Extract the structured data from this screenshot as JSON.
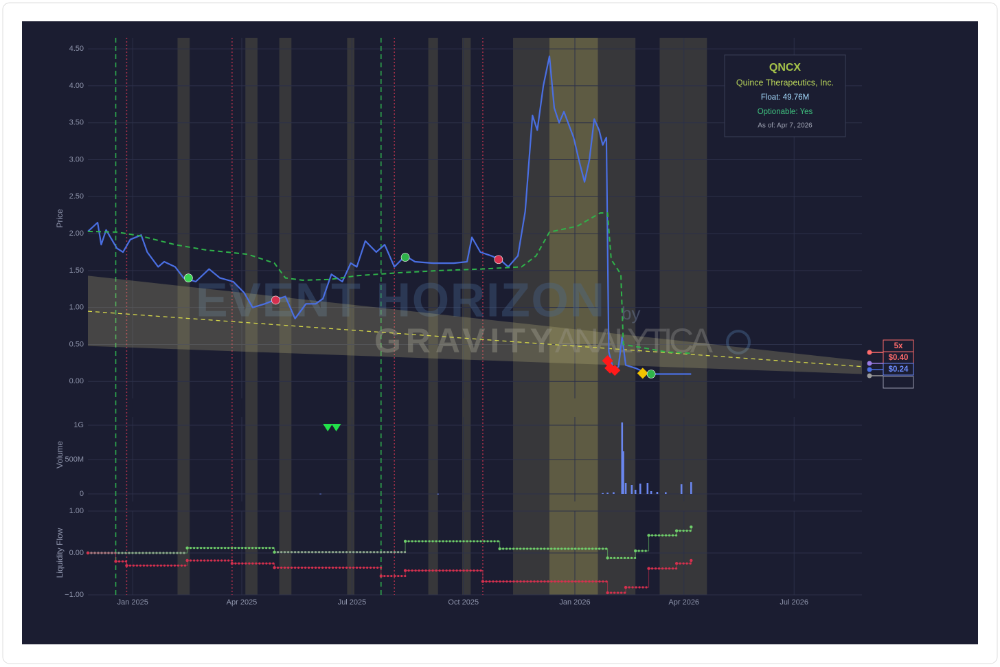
{
  "chart_data": [
    {
      "type": "line",
      "y_label": "Price",
      "ylim": [
        -0.23,
        4.65
      ],
      "yticks": [
        {
          "value": 0,
          "label": "0.00"
        },
        {
          "value": 0.5,
          "label": "0.50"
        },
        {
          "value": 1,
          "label": "1.00"
        },
        {
          "value": 1.5,
          "label": "1.50"
        },
        {
          "value": 2,
          "label": "2.00"
        },
        {
          "value": 2.5,
          "label": "2.50"
        },
        {
          "value": 3,
          "label": "3.00"
        },
        {
          "value": 3.5,
          "label": "3.50"
        },
        {
          "value": 4,
          "label": "4.00"
        },
        {
          "value": 4.5,
          "label": "4.50"
        }
      ],
      "grid": true,
      "series": [
        {
          "color": "#4a6fe3",
          "dash": "solid",
          "x": [
            "2024-11-25",
            "2024-12-03",
            "2024-12-06",
            "2024-12-10",
            "2024-12-19",
            "2024-12-24",
            "2024-12-30",
            "2025-01-08",
            "2025-01-13",
            "2025-01-22",
            "2025-01-27",
            "2025-02-05",
            "2025-02-12",
            "2025-02-22",
            "2025-03-05",
            "2025-03-14",
            "2025-03-25",
            "2025-04-03",
            "2025-04-10",
            "2025-04-20",
            "2025-04-28",
            "2025-05-07",
            "2025-05-15",
            "2025-05-24",
            "2025-06-01",
            "2025-06-07",
            "2025-06-14",
            "2025-06-23",
            "2025-06-30",
            "2025-07-05",
            "2025-07-12",
            "2025-07-21",
            "2025-07-28",
            "2025-08-05",
            "2025-08-14",
            "2025-08-22",
            "2025-09-06",
            "2025-09-23",
            "2025-10-04",
            "2025-10-08",
            "2025-10-15",
            "2025-10-24",
            "2025-10-31",
            "2025-11-07",
            "2025-11-15",
            "2025-11-21",
            "2025-11-27",
            "2025-12-01",
            "2025-12-06",
            "2025-12-11",
            "2025-12-15",
            "2025-12-19",
            "2025-12-23",
            "2025-12-31",
            "2026-01-05",
            "2026-01-09",
            "2026-01-13",
            "2026-01-17",
            "2026-01-21",
            "2026-01-24",
            "2026-01-27",
            "2026-01-29",
            "2026-02-02",
            "2026-02-06",
            "2026-02-09",
            "2026-02-12",
            "2026-02-20",
            "2026-03-03",
            "2026-03-14",
            "2026-03-26",
            "2026-04-07"
          ],
          "values": [
            2.03,
            2.15,
            1.85,
            2.05,
            1.8,
            1.75,
            1.92,
            1.98,
            1.75,
            1.55,
            1.62,
            1.55,
            1.4,
            1.35,
            1.52,
            1.4,
            1.35,
            1.2,
            1.0,
            1.05,
            1.1,
            1.15,
            0.85,
            1.05,
            1.05,
            1.12,
            1.45,
            1.35,
            1.6,
            1.55,
            1.9,
            1.75,
            1.85,
            1.55,
            1.7,
            1.62,
            1.6,
            1.6,
            1.62,
            1.95,
            1.75,
            1.7,
            1.65,
            1.55,
            1.7,
            2.3,
            3.6,
            3.4,
            4.0,
            4.4,
            3.7,
            3.5,
            3.65,
            3.3,
            2.95,
            2.7,
            3.0,
            3.55,
            3.4,
            3.2,
            3.3,
            0.4,
            0.15,
            0.2,
            0.6,
            0.22,
            0.18,
            0.1,
            0.1,
            0.1,
            0.1
          ]
        },
        {
          "color": "#2fb34a",
          "dash": "dash",
          "x": [
            "2024-11-25",
            "2024-12-19",
            "2025-01-07",
            "2025-02-05",
            "2025-03-02",
            "2025-04-06",
            "2025-04-28",
            "2025-05-07",
            "2025-05-21",
            "2025-06-13",
            "2025-07-05",
            "2025-08-08",
            "2025-09-11",
            "2025-10-15",
            "2025-11-18",
            "2025-11-30",
            "2025-12-11",
            "2026-01-03",
            "2026-01-22",
            "2026-01-28",
            "2026-01-31",
            "2026-02-08",
            "2026-02-10",
            "2026-02-28",
            "2026-03-17",
            "2026-04-07"
          ],
          "values": [
            2.03,
            2.02,
            1.97,
            1.85,
            1.78,
            1.72,
            1.6,
            1.4,
            1.37,
            1.38,
            1.43,
            1.47,
            1.5,
            1.52,
            1.55,
            1.7,
            2.02,
            2.1,
            2.28,
            2.28,
            1.65,
            1.45,
            0.5,
            0.45,
            0.4,
            0.38
          ]
        }
      ],
      "trend_band": {
        "color": "#c9bf85",
        "x": [
          "2024-11-25",
          "2026-08-26"
        ],
        "upper": [
          1.43,
          0.28
        ],
        "lower": [
          0.48,
          0.1
        ]
      },
      "trend_line": {
        "color": "#d6d84a",
        "x": [
          "2024-11-25",
          "2026-08-26"
        ],
        "values": [
          0.95,
          0.2
        ]
      },
      "markers": [
        {
          "x": "2025-02-16",
          "value": 1.4,
          "color": "#39d353",
          "shape": "circle"
        },
        {
          "x": "2025-04-29",
          "value": 1.1,
          "color": "#d6304f",
          "shape": "circle"
        },
        {
          "x": "2025-08-14",
          "value": 1.68,
          "color": "#2fb34a",
          "shape": "circle"
        },
        {
          "x": "2025-10-30",
          "value": 1.65,
          "color": "#d6304f",
          "shape": "circle"
        },
        {
          "x": "2026-01-28",
          "value": 0.28,
          "color": "#ff1a1a",
          "shape": "diamond"
        },
        {
          "x": "2026-01-30",
          "value": 0.18,
          "color": "#ff1a1a",
          "shape": "diamond"
        },
        {
          "x": "2026-02-03",
          "value": 0.15,
          "color": "#ff1a1a",
          "shape": "diamond"
        },
        {
          "x": "2026-02-26",
          "value": 0.11,
          "color": "#f2c200",
          "shape": "diamond"
        },
        {
          "x": "2026-03-05",
          "value": 0.1,
          "color": "#2fb34a",
          "shape": "circle"
        }
      ],
      "shaded_periods": [
        {
          "start": "2025-02-07",
          "end": "2025-02-17",
          "color": "#5a5848"
        },
        {
          "start": "2025-04-04",
          "end": "2025-04-14",
          "color": "#5a5848"
        },
        {
          "start": "2025-05-02",
          "end": "2025-05-12",
          "color": "#5a5848"
        },
        {
          "start": "2025-06-27",
          "end": "2025-07-03",
          "color": "#5a5848"
        },
        {
          "start": "2025-09-02",
          "end": "2025-09-10",
          "color": "#5a5848"
        },
        {
          "start": "2025-09-30",
          "end": "2025-10-07",
          "color": "#5a5848"
        },
        {
          "start": "2025-11-11",
          "end": "2025-12-11",
          "color": "#5a5848"
        },
        {
          "start": "2025-12-11",
          "end": "2026-01-20",
          "color": "#b2a85a"
        },
        {
          "start": "2026-01-20",
          "end": "2026-02-20",
          "color": "#5a5848"
        },
        {
          "start": "2026-03-12",
          "end": "2026-04-20",
          "color": "#5a5848"
        }
      ],
      "event_lines": [
        {
          "x": "2024-12-18",
          "color": "#2fae4f",
          "style": "dash"
        },
        {
          "x": "2024-12-27",
          "color": "#a8304a",
          "style": "dot"
        },
        {
          "x": "2025-03-24",
          "color": "#a8304a",
          "style": "dot"
        },
        {
          "x": "2025-07-25",
          "color": "#2fae4f",
          "style": "dash"
        },
        {
          "x": "2025-08-05",
          "color": "#a8304a",
          "style": "dot"
        },
        {
          "x": "2025-10-17",
          "color": "#a8304a",
          "style": "dot"
        }
      ],
      "info_box": {
        "symbol": "QNCX",
        "name": "Quince Therapeutics, Inc.",
        "float": "Float: 49.76M",
        "optionable": "Optionable: Yes",
        "as_of": "As of: Apr 7, 2026"
      },
      "price_labels": [
        {
          "text": "5x",
          "color": "#ff6b6b"
        },
        {
          "text": "$0.40",
          "color": "#ff6b6b"
        },
        {
          "text": "$0.24",
          "color": "#6c8cff"
        }
      ],
      "watermark": {
        "line1": "EVENT HORIZON",
        "by": "by",
        "brand1": "GRAVITY",
        "brand2": "ANALYTICA"
      }
    },
    {
      "type": "bar",
      "y_label": "Volume",
      "ylim": [
        -110000000,
        1120000000
      ],
      "yticks": [
        0,
        {
          "value": 500000000,
          "label": "500M"
        },
        {
          "value": 1000000000,
          "label": "1G"
        }
      ],
      "grid": true,
      "series": [
        {
          "color": "#6a86ee",
          "x": [
            "2025-06-05",
            "2025-09-10",
            "2026-01-24",
            "2026-01-28",
            "2026-02-02",
            "2026-02-09",
            "2026-02-10",
            "2026-02-12",
            "2026-02-17",
            "2026-02-20",
            "2026-02-24",
            "2026-03-02",
            "2026-03-05",
            "2026-03-10",
            "2026-03-17",
            "2026-03-30",
            "2026-04-07"
          ],
          "values": [
            4000000,
            3000000,
            12000000,
            18000000,
            25000000,
            1040000000,
            620000000,
            160000000,
            130000000,
            60000000,
            150000000,
            160000000,
            40000000,
            30000000,
            25000000,
            140000000,
            170000000
          ]
        }
      ],
      "markers": [
        {
          "x": "2025-06-11",
          "value": 970000000,
          "color": "#22e04a",
          "shape": "triangle-down"
        },
        {
          "x": "2025-06-18",
          "value": 970000000,
          "color": "#22e04a",
          "shape": "triangle-down"
        }
      ]
    },
    {
      "type": "line",
      "y_label": "Liquidity Flow",
      "ylim": [
        -1,
        1
      ],
      "yticks": [
        {
          "value": -1,
          "label": "−1.00"
        },
        {
          "value": 0,
          "label": "0.00"
        },
        {
          "value": 1,
          "label": "1.00"
        }
      ],
      "grid": true,
      "step": true,
      "xlim": [
        "2024-11-25",
        "2026-08-26"
      ],
      "xticks": [
        {
          "value": "2025-01-01",
          "label": "Jan 2025"
        },
        {
          "value": "2025-04-01",
          "label": "Apr 2025"
        },
        {
          "value": "2025-07-01",
          "label": "Jul 2025"
        },
        {
          "value": "2025-10-01",
          "label": "Oct 2025"
        },
        {
          "value": "2026-01-01",
          "label": "Jan 2026"
        },
        {
          "value": "2026-04-01",
          "label": "Apr 2026"
        },
        {
          "value": "2026-07-01",
          "label": "Jul 2026"
        }
      ],
      "series": [
        {
          "color": "#6fcf6a",
          "x": [
            "2024-11-25",
            "2025-02-15",
            "2025-04-28",
            "2025-08-14",
            "2025-10-31",
            "2026-01-28",
            "2026-02-20",
            "2026-03-03",
            "2026-03-26",
            "2026-04-07"
          ],
          "values": [
            0.0,
            0.12,
            0.02,
            0.28,
            0.1,
            -0.12,
            0.05,
            0.42,
            0.53,
            0.62
          ]
        },
        {
          "color": "#d6304f",
          "x": [
            "2024-11-25",
            "2024-12-18",
            "2024-12-27",
            "2025-02-15",
            "2025-03-24",
            "2025-04-28",
            "2025-07-25",
            "2025-08-14",
            "2025-10-17",
            "2026-01-28",
            "2026-02-12",
            "2026-03-03",
            "2026-03-26",
            "2026-04-07"
          ],
          "values": [
            0.0,
            -0.2,
            -0.3,
            -0.18,
            -0.25,
            -0.35,
            -0.55,
            -0.42,
            -0.68,
            -0.95,
            -0.82,
            -0.37,
            -0.25,
            -0.18
          ]
        }
      ]
    }
  ]
}
